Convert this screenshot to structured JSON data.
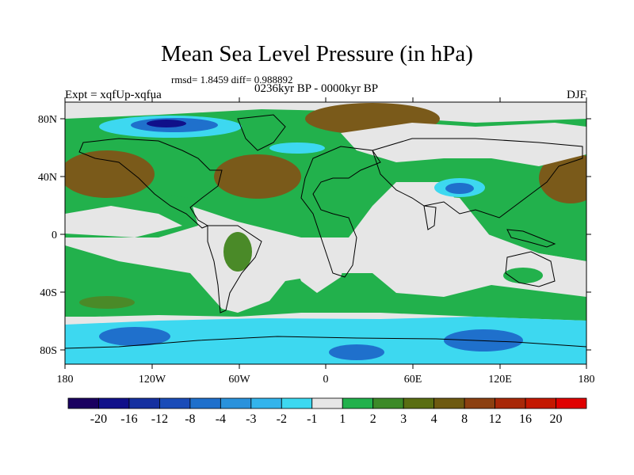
{
  "title": "Mean Sea Level Pressure (in hPa)",
  "stats": "rmsd= 1.8459 diff= 0.988892",
  "period": "0236kyr BP - 0000kyr BP",
  "experiment": "Expt = xqfUp-xqfua",
  "season": "DJF",
  "lat_labels": [
    "80N",
    "40N",
    "0",
    "40S",
    "80S"
  ],
  "lon_labels": [
    "180",
    "120W",
    "60W",
    "0",
    "60E",
    "120E",
    "180"
  ],
  "colorbar": {
    "labels": [
      "-20",
      "-16",
      "-12",
      "-8",
      "-4",
      "-3",
      "-2",
      "-1",
      "1",
      "2",
      "3",
      "4",
      "8",
      "12",
      "16",
      "20"
    ],
    "colors": [
      "#1a0060",
      "#10108a",
      "#1530a0",
      "#1a4cb8",
      "#1f70cc",
      "#2a92dc",
      "#33b4ec",
      "#3dd8f0",
      "#e6e6e6",
      "#22b14c",
      "#3c8a28",
      "#5a6e12",
      "#6e5a10",
      "#8c4010",
      "#a82808",
      "#c41800",
      "#e00000"
    ]
  },
  "map_colors": {
    "ocean_neutral": "#e6e6e6",
    "green": "#22b14c",
    "dark_green": "#4a8a28",
    "brown": "#7a5a1a",
    "cyan": "#3dd8f0",
    "blue": "#1f70cc",
    "navy": "#10108a",
    "coast": "#000000"
  }
}
